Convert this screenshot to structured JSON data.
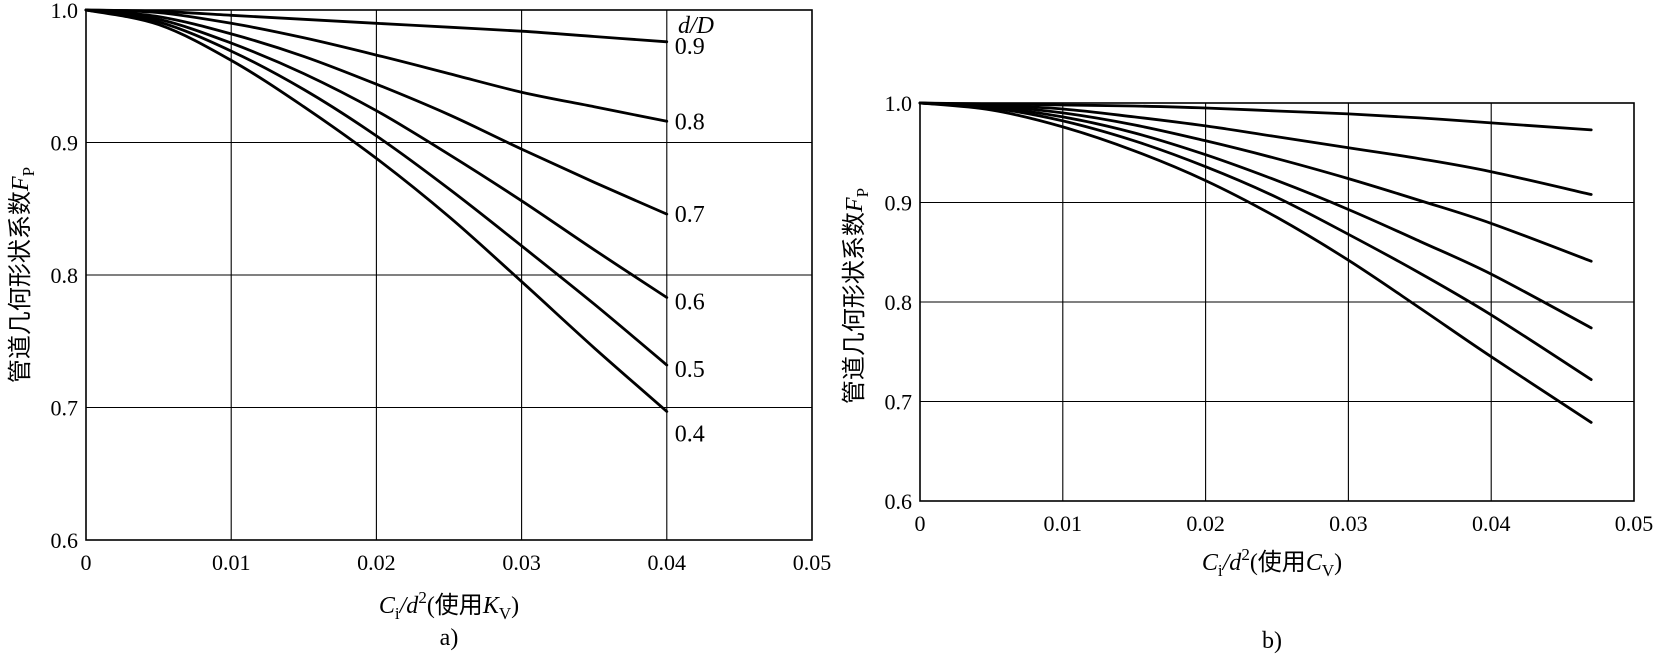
{
  "chart_data": [
    {
      "type": "line",
      "panel_label": "a)",
      "xlabel": {
        "main": "C",
        "sub": "i",
        "mid": "/d",
        "sup": "2",
        "paren": "(使用",
        "k": "K",
        "ksub": "V",
        "close": ")"
      },
      "ylabel": {
        "main": "管道几何形状系数",
        "f": "F",
        "fsub": "P"
      },
      "xlim": [
        0,
        0.05
      ],
      "ylim": [
        0.6,
        1.0
      ],
      "xticks": [
        "0",
        "0.01",
        "0.02",
        "0.03",
        "0.04",
        "0.05"
      ],
      "yticks": [
        "0.6",
        "0.7",
        "0.8",
        "0.9",
        "1.0"
      ],
      "xtick_values": [
        0,
        0.01,
        0.02,
        0.03,
        0.04,
        0.05
      ],
      "ytick_values": [
        0.6,
        0.7,
        0.8,
        0.9,
        1.0
      ],
      "legend_title": "d/D",
      "grid": true,
      "series": [
        {
          "name": "0.9",
          "x": [
            0,
            0.005,
            0.01,
            0.015,
            0.02,
            0.025,
            0.03,
            0.035,
            0.04
          ],
          "y": [
            1.0,
            0.999,
            0.996,
            0.993,
            0.99,
            0.987,
            0.984,
            0.98,
            0.976
          ]
        },
        {
          "name": "0.8",
          "x": [
            0,
            0.005,
            0.01,
            0.015,
            0.02,
            0.025,
            0.03,
            0.035,
            0.04
          ],
          "y": [
            1.0,
            0.998,
            0.99,
            0.979,
            0.966,
            0.952,
            0.938,
            0.927,
            0.916
          ]
        },
        {
          "name": "0.7",
          "x": [
            0,
            0.005,
            0.01,
            0.015,
            0.02,
            0.025,
            0.03,
            0.035,
            0.04
          ],
          "y": [
            1.0,
            0.995,
            0.982,
            0.965,
            0.944,
            0.921,
            0.895,
            0.87,
            0.846
          ]
        },
        {
          "name": "0.6",
          "x": [
            0,
            0.005,
            0.01,
            0.015,
            0.02,
            0.025,
            0.03,
            0.035,
            0.04
          ],
          "y": [
            1.0,
            0.993,
            0.975,
            0.952,
            0.924,
            0.891,
            0.856,
            0.819,
            0.783
          ]
        },
        {
          "name": "0.5",
          "x": [
            0,
            0.005,
            0.01,
            0.015,
            0.02,
            0.025,
            0.03,
            0.035,
            0.04
          ],
          "y": [
            1.0,
            0.991,
            0.969,
            0.94,
            0.905,
            0.865,
            0.822,
            0.778,
            0.732
          ]
        },
        {
          "name": "0.4",
          "x": [
            0,
            0.005,
            0.01,
            0.015,
            0.02,
            0.025,
            0.03,
            0.035,
            0.04
          ],
          "y": [
            1.0,
            0.989,
            0.962,
            0.927,
            0.888,
            0.844,
            0.795,
            0.745,
            0.697
          ]
        }
      ]
    },
    {
      "type": "line",
      "panel_label": "b)",
      "xlabel": {
        "main": "C",
        "sub": "i",
        "mid": "/d",
        "sup": "2",
        "paren": "(使用",
        "k": "C",
        "ksub": "V",
        "close": ")"
      },
      "ylabel": {
        "main": "管道几何形状系数",
        "f": "F",
        "fsub": "P"
      },
      "xlim": [
        0,
        0.05
      ],
      "ylim": [
        0.6,
        1.0
      ],
      "xticks": [
        "0",
        "0.01",
        "0.02",
        "0.03",
        "0.04",
        "0.05"
      ],
      "yticks": [
        "0.6",
        "0.7",
        "0.8",
        "0.9",
        "1.0"
      ],
      "xtick_values": [
        0,
        0.01,
        0.02,
        0.03,
        0.04,
        0.05
      ],
      "ytick_values": [
        0.6,
        0.7,
        0.8,
        0.9,
        1.0
      ],
      "grid": true,
      "series": [
        {
          "x": [
            0,
            0.005,
            0.01,
            0.015,
            0.02,
            0.025,
            0.03,
            0.035,
            0.04,
            0.047
          ],
          "y": [
            1.0,
            0.999,
            0.998,
            0.997,
            0.995,
            0.992,
            0.989,
            0.985,
            0.98,
            0.973
          ]
        },
        {
          "x": [
            0,
            0.005,
            0.01,
            0.015,
            0.02,
            0.025,
            0.03,
            0.035,
            0.04,
            0.047
          ],
          "y": [
            1.0,
            0.998,
            0.994,
            0.986,
            0.977,
            0.966,
            0.955,
            0.944,
            0.931,
            0.908
          ]
        },
        {
          "x": [
            0,
            0.005,
            0.01,
            0.015,
            0.02,
            0.025,
            0.03,
            0.035,
            0.04,
            0.047
          ],
          "y": [
            1.0,
            0.997,
            0.99,
            0.978,
            0.962,
            0.944,
            0.924,
            0.902,
            0.879,
            0.841
          ]
        },
        {
          "x": [
            0,
            0.005,
            0.01,
            0.015,
            0.02,
            0.025,
            0.03,
            0.035,
            0.04,
            0.047
          ],
          "y": [
            1.0,
            0.996,
            0.986,
            0.97,
            0.948,
            0.922,
            0.893,
            0.861,
            0.828,
            0.774
          ]
        },
        {
          "x": [
            0,
            0.005,
            0.01,
            0.015,
            0.02,
            0.025,
            0.03,
            0.035,
            0.04,
            0.047
          ],
          "y": [
            1.0,
            0.995,
            0.982,
            0.962,
            0.936,
            0.905,
            0.868,
            0.829,
            0.787,
            0.722
          ]
        },
        {
          "x": [
            0,
            0.005,
            0.01,
            0.015,
            0.02,
            0.025,
            0.03,
            0.035,
            0.04,
            0.047
          ],
          "y": [
            1.0,
            0.993,
            0.976,
            0.952,
            0.922,
            0.885,
            0.842,
            0.794,
            0.745,
            0.679
          ]
        }
      ]
    }
  ]
}
